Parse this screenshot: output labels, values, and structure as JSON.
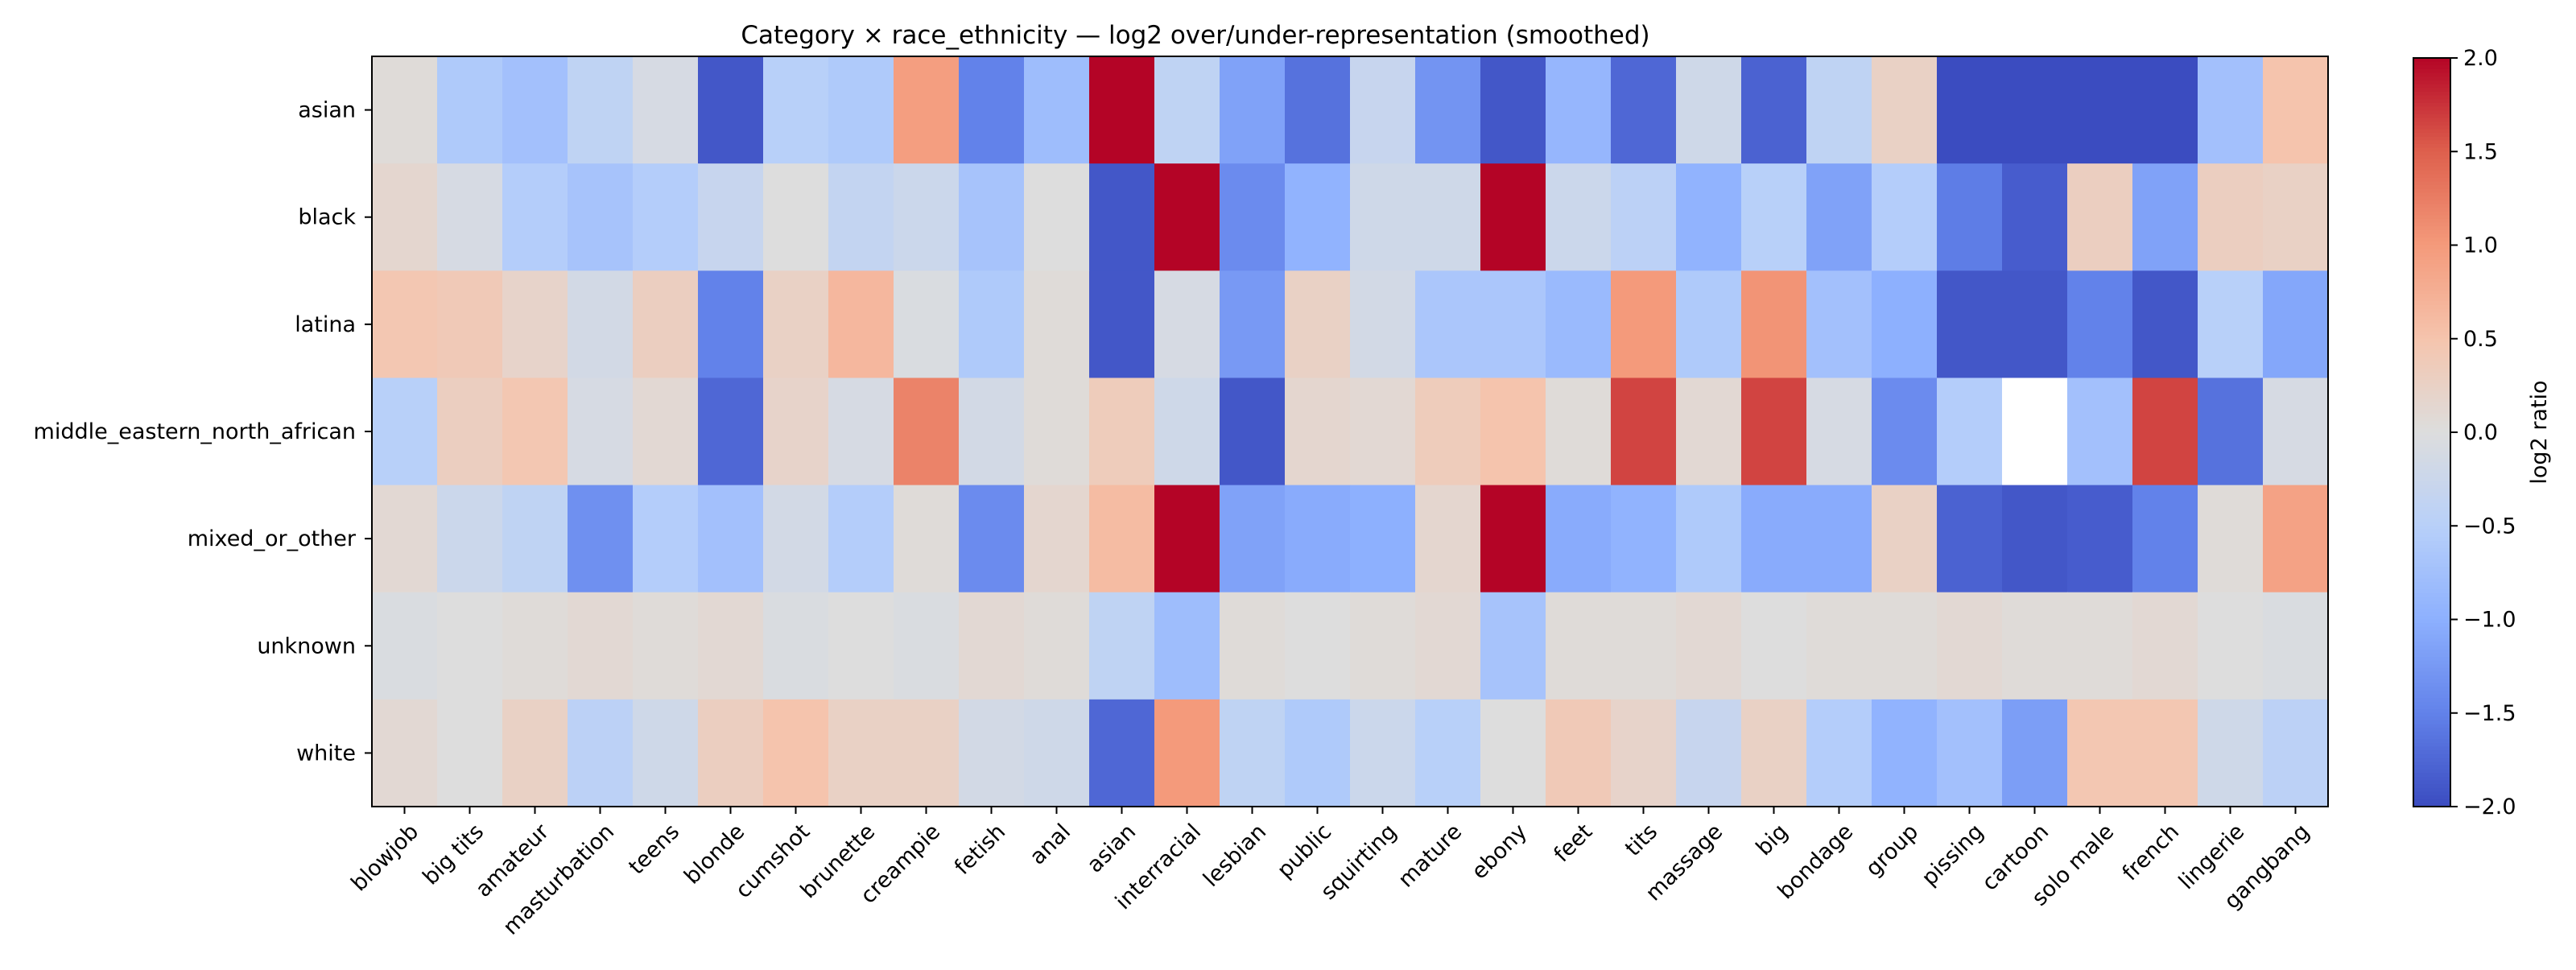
{
  "chart_data": {
    "type": "heatmap",
    "title": "Category × race_ethnicity — log2 over/under-representation (smoothed)",
    "rows": [
      "asian",
      "black",
      "latina",
      "middle_eastern_north_african",
      "mixed_or_other",
      "unknown",
      "white"
    ],
    "columns": [
      "blowjob",
      "big tits",
      "amateur",
      "masturbation",
      "teens",
      "blonde",
      "cumshot",
      "brunette",
      "creampie",
      "fetish",
      "anal",
      "asian",
      "interracial",
      "lesbian",
      "public",
      "squirting",
      "mature",
      "ebony",
      "feet",
      "tits",
      "massage",
      "big",
      "bondage",
      "group",
      "pissing",
      "cartoon",
      "solo male",
      "french",
      "lingerie",
      "gangbang"
    ],
    "values": [
      [
        0.05,
        -0.6,
        -0.75,
        -0.4,
        -0.1,
        -1.9,
        -0.5,
        -0.6,
        0.95,
        -1.5,
        -0.8,
        2.0,
        -0.4,
        -1.15,
        -1.65,
        -0.3,
        -1.3,
        -1.9,
        -0.9,
        -1.75,
        -0.2,
        -1.8,
        -0.4,
        0.25,
        -2.0,
        -2.0,
        -2.0,
        -2.0,
        -0.75,
        0.5
      ],
      [
        0.15,
        -0.1,
        -0.55,
        -0.7,
        -0.55,
        -0.3,
        0.0,
        -0.35,
        -0.25,
        -0.7,
        0.0,
        -1.9,
        2.0,
        -1.4,
        -0.95,
        -0.2,
        -0.2,
        2.0,
        -0.25,
        -0.45,
        -0.95,
        -0.5,
        -1.15,
        -0.55,
        -1.55,
        -1.85,
        0.3,
        -1.15,
        0.3,
        0.25
      ],
      [
        0.45,
        0.4,
        0.2,
        -0.15,
        0.3,
        -1.5,
        0.25,
        0.65,
        -0.05,
        -0.6,
        0.05,
        -1.9,
        -0.1,
        -1.25,
        0.25,
        -0.15,
        -0.65,
        -0.65,
        -0.85,
        1.0,
        -0.6,
        1.05,
        -0.75,
        -1.0,
        -1.9,
        -1.9,
        -1.5,
        -1.9,
        -0.5,
        -1.1
      ],
      [
        -0.5,
        0.3,
        0.45,
        -0.1,
        0.1,
        -1.75,
        0.2,
        -0.1,
        1.2,
        -0.15,
        0.05,
        0.35,
        -0.2,
        -1.9,
        0.15,
        0.1,
        0.35,
        0.5,
        0.05,
        1.65,
        0.1,
        1.65,
        -0.1,
        -1.4,
        -0.55,
        null,
        -0.75,
        1.65,
        -1.65,
        -0.1
      ],
      [
        0.1,
        -0.25,
        -0.4,
        -1.35,
        -0.55,
        -0.75,
        -0.15,
        -0.55,
        0.05,
        -1.4,
        0.15,
        0.6,
        2.0,
        -1.15,
        -1.05,
        -1.0,
        0.15,
        2.0,
        -1.05,
        -0.95,
        -0.6,
        -1.05,
        -1.05,
        0.25,
        -1.8,
        -1.9,
        -1.85,
        -1.5,
        0.05,
        0.9
      ],
      [
        -0.05,
        0.0,
        0.05,
        0.1,
        0.05,
        0.1,
        -0.05,
        0.0,
        -0.05,
        0.1,
        0.05,
        -0.4,
        -0.8,
        0.05,
        0.0,
        0.05,
        0.1,
        -0.7,
        0.05,
        0.05,
        0.1,
        0.0,
        0.05,
        0.05,
        0.1,
        0.05,
        0.05,
        0.1,
        0.0,
        -0.05
      ],
      [
        0.1,
        0.0,
        0.25,
        -0.45,
        -0.2,
        0.3,
        0.5,
        0.25,
        0.25,
        -0.15,
        -0.2,
        -1.75,
        1.0,
        -0.4,
        -0.6,
        -0.25,
        -0.5,
        0.0,
        0.4,
        0.2,
        -0.3,
        0.25,
        -0.55,
        -0.95,
        -0.75,
        -1.2,
        0.45,
        0.45,
        -0.2,
        -0.45
      ]
    ],
    "colorbar": {
      "label": "log2 ratio",
      "min": -2.0,
      "max": 2.0,
      "ticks": [
        -2.0,
        -1.5,
        -1.0,
        -0.5,
        0.0,
        0.5,
        1.0,
        1.5,
        2.0
      ],
      "tick_labels": [
        "−2.0",
        "−1.5",
        "−1.0",
        "−0.5",
        "0.0",
        "0.5",
        "1.0",
        "1.5",
        "2.0"
      ],
      "colormap": "coolwarm"
    },
    "missing_color": "#ffffff"
  }
}
